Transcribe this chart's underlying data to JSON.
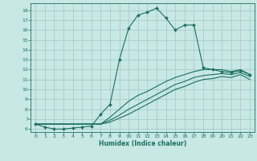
{
  "xlabel": "Humidex (Indice chaleur)",
  "bg_color": "#c8e8e4",
  "grid_color": "#a0c8c4",
  "line_color": "#1a7060",
  "xlim": [
    -0.5,
    23.5
  ],
  "ylim": [
    5.7,
    18.7
  ],
  "xticks": [
    0,
    1,
    2,
    3,
    4,
    5,
    6,
    7,
    8,
    9,
    10,
    11,
    12,
    13,
    14,
    15,
    16,
    17,
    18,
    19,
    20,
    21,
    22,
    23
  ],
  "yticks": [
    6,
    7,
    8,
    9,
    10,
    11,
    12,
    13,
    14,
    15,
    16,
    17,
    18
  ],
  "series1_x": [
    0,
    1,
    2,
    3,
    4,
    5,
    6,
    7,
    8,
    9,
    10,
    11,
    12,
    13,
    14,
    15,
    16,
    17,
    18,
    19,
    20,
    21,
    22,
    23
  ],
  "series1_y": [
    6.5,
    6.2,
    6.0,
    6.0,
    6.1,
    6.2,
    6.3,
    7.5,
    8.5,
    13.0,
    16.2,
    17.5,
    17.8,
    18.2,
    17.2,
    16.0,
    16.5,
    16.5,
    12.2,
    12.0,
    11.8,
    11.7,
    11.9,
    11.5
  ],
  "series2_x": [
    0,
    7,
    8,
    9,
    10,
    11,
    12,
    13,
    14,
    15,
    16,
    17,
    18,
    19,
    20,
    21,
    22,
    23
  ],
  "series2_y": [
    6.5,
    6.5,
    7.2,
    8.0,
    8.8,
    9.4,
    9.8,
    10.3,
    10.8,
    11.2,
    11.5,
    11.8,
    12.0,
    12.0,
    12.0,
    11.8,
    12.0,
    11.5
  ],
  "series3_x": [
    0,
    7,
    8,
    9,
    10,
    11,
    12,
    13,
    14,
    15,
    16,
    17,
    18,
    19,
    20,
    21,
    22,
    23
  ],
  "series3_y": [
    6.5,
    6.5,
    6.9,
    7.4,
    8.0,
    8.5,
    9.0,
    9.5,
    10.0,
    10.5,
    10.8,
    11.2,
    11.4,
    11.5,
    11.6,
    11.5,
    11.7,
    11.3
  ],
  "series4_x": [
    0,
    7,
    8,
    9,
    10,
    11,
    12,
    13,
    14,
    15,
    16,
    17,
    18,
    19,
    20,
    21,
    22,
    23
  ],
  "series4_y": [
    6.5,
    6.5,
    6.7,
    7.1,
    7.5,
    8.0,
    8.5,
    9.0,
    9.5,
    10.0,
    10.3,
    10.7,
    11.0,
    11.1,
    11.3,
    11.2,
    11.5,
    11.0
  ]
}
